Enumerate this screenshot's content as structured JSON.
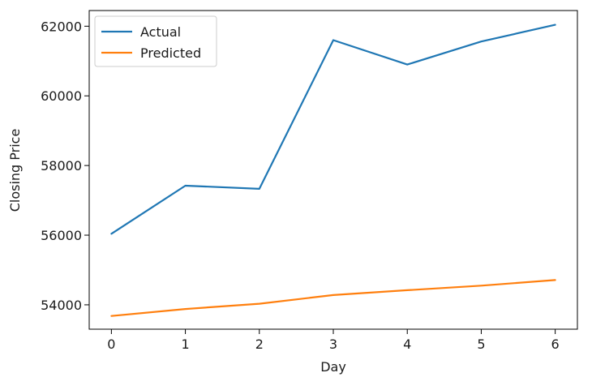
{
  "chart_data": {
    "type": "line",
    "title": "",
    "xlabel": "Day",
    "ylabel": "Closing Price",
    "x": [
      0,
      1,
      2,
      3,
      4,
      5,
      6
    ],
    "xticks": [
      "0",
      "1",
      "2",
      "3",
      "4",
      "5",
      "6"
    ],
    "yticks": [
      "54000",
      "56000",
      "58000",
      "60000",
      "62000"
    ],
    "xlim": [
      -0.3,
      6.3
    ],
    "ylim": [
      53300,
      62450
    ],
    "grid": false,
    "legend_position": "top-left",
    "series": [
      {
        "name": "Actual",
        "color": "#1f77b4",
        "values": [
          56040,
          57420,
          57330,
          61600,
          60900,
          61560,
          62040
        ]
      },
      {
        "name": "Predicted",
        "color": "#ff7f0e",
        "values": [
          53680,
          53880,
          54030,
          54280,
          54420,
          54550,
          54710
        ]
      }
    ]
  }
}
